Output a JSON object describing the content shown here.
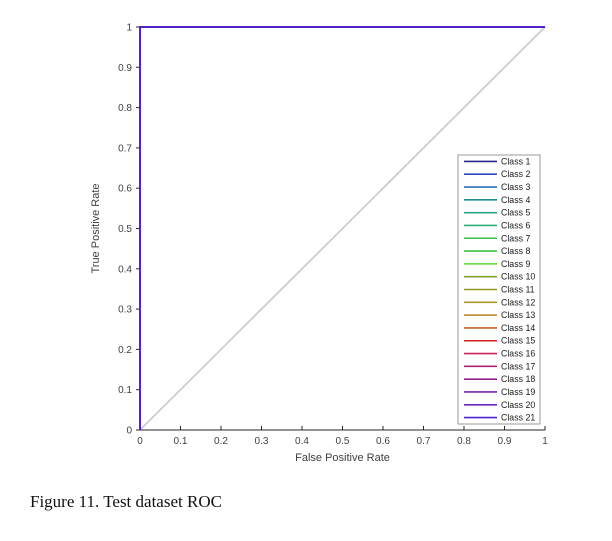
{
  "caption": "Figure 11. Test dataset ROC",
  "chart_data": {
    "type": "line",
    "title": "",
    "xlabel": "False Positive Rate",
    "ylabel": "True Positive Rate",
    "xlim": [
      0,
      1
    ],
    "ylim": [
      0,
      1
    ],
    "xticks": [
      "0",
      "0.1",
      "0.2",
      "0.3",
      "0.4",
      "0.5",
      "0.6",
      "0.7",
      "0.8",
      "0.9",
      "1"
    ],
    "yticks": [
      "0",
      "0.1",
      "0.2",
      "0.3",
      "0.4",
      "0.5",
      "0.6",
      "0.7",
      "0.8",
      "0.9",
      "1"
    ],
    "grid": false,
    "legend_position": "right-inside",
    "axis_color": "#262626",
    "tick_label_color": "#3f3f3f",
    "legend_border_color": "#9a9a9a",
    "legend_text_color": "#1a1a1a",
    "reference_line": {
      "x": [
        0,
        1
      ],
      "y": [
        0,
        1
      ],
      "color": "#c9c9c9"
    },
    "series_x": [
      0,
      0,
      1
    ],
    "series_y": [
      0,
      1,
      1
    ],
    "series": [
      {
        "name": "Class 1",
        "color": "#28288e"
      },
      {
        "name": "Class 2",
        "color": "#2a49c0"
      },
      {
        "name": "Class 3",
        "color": "#2a70b8"
      },
      {
        "name": "Class 4",
        "color": "#1f8c96"
      },
      {
        "name": "Class 5",
        "color": "#27a188"
      },
      {
        "name": "Class 6",
        "color": "#2fae72"
      },
      {
        "name": "Class 7",
        "color": "#37bd52"
      },
      {
        "name": "Class 8",
        "color": "#3fc344"
      },
      {
        "name": "Class 9",
        "color": "#5ad82e"
      },
      {
        "name": "Class 10",
        "color": "#85a42c"
      },
      {
        "name": "Class 11",
        "color": "#989827"
      },
      {
        "name": "Class 12",
        "color": "#ab9722"
      },
      {
        "name": "Class 13",
        "color": "#bc7e26"
      },
      {
        "name": "Class 14",
        "color": "#c66426"
      },
      {
        "name": "Class 15",
        "color": "#d62121"
      },
      {
        "name": "Class 16",
        "color": "#cb2456"
      },
      {
        "name": "Class 17",
        "color": "#ad2175"
      },
      {
        "name": "Class 18",
        "color": "#96218f"
      },
      {
        "name": "Class 19",
        "color": "#7f23a8"
      },
      {
        "name": "Class 20",
        "color": "#6a23c4"
      },
      {
        "name": "Class 21",
        "color": "#4f24cf"
      }
    ]
  }
}
